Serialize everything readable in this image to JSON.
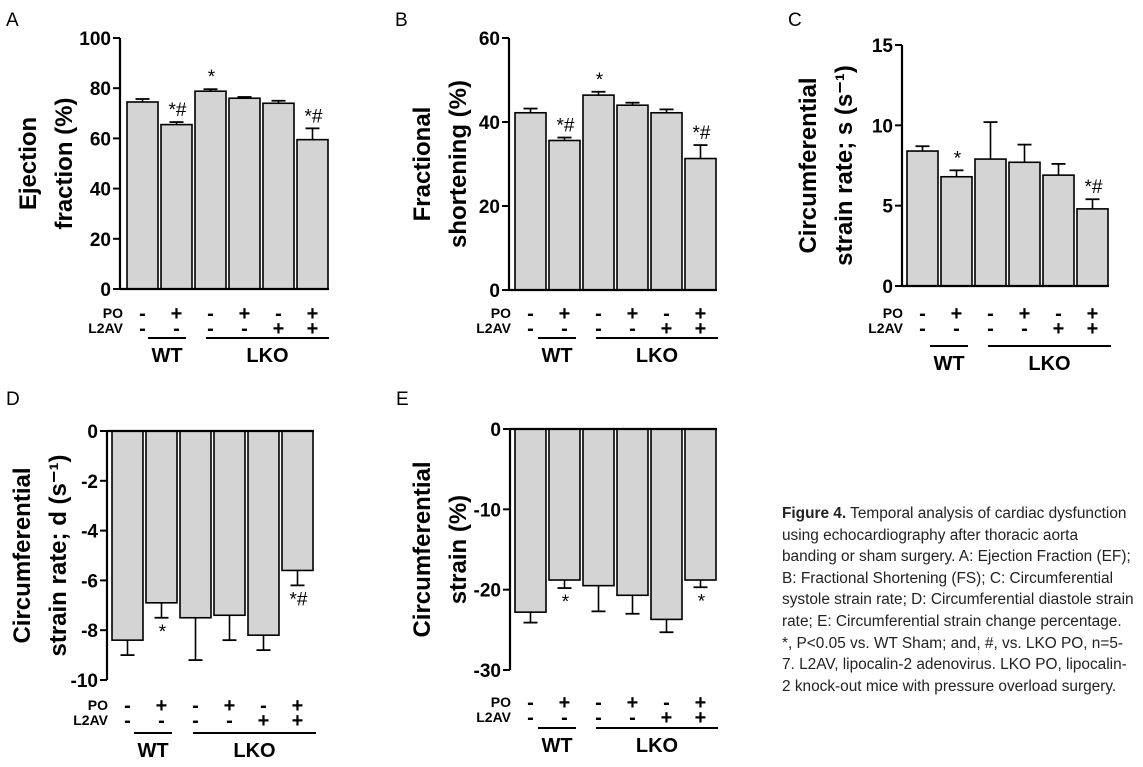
{
  "row_labels": [
    "PO",
    "L2AV"
  ],
  "conditions": [
    {
      "po": "-",
      "l2av": "-"
    },
    {
      "po": "+",
      "l2av": "-"
    },
    {
      "po": "-",
      "l2av": "-"
    },
    {
      "po": "+",
      "l2av": "-"
    },
    {
      "po": "-",
      "l2av": "+"
    },
    {
      "po": "+",
      "l2av": "+"
    }
  ],
  "groups": [
    {
      "label": "WT",
      "from": 0,
      "to": 1
    },
    {
      "label": "LKO",
      "from": 2,
      "to": 5
    }
  ],
  "bar_color": "#d4d4d4",
  "chart_data": [
    {
      "panel": "A",
      "type": "bar",
      "ylabel": [
        "Ejection",
        "fraction (%)"
      ],
      "ylim": [
        0,
        100
      ],
      "yticks": [
        0,
        20,
        40,
        60,
        80,
        100
      ],
      "values": [
        74.5,
        65.5,
        78.8,
        76,
        74,
        59.5
      ],
      "errors": [
        1.2,
        1.0,
        0.8,
        0.5,
        1.0,
        4.5
      ],
      "annotations": [
        "",
        "*#",
        "*",
        "",
        "",
        "*#"
      ]
    },
    {
      "panel": "B",
      "type": "bar",
      "ylabel": [
        "Fractional",
        "shortening (%)"
      ],
      "ylim": [
        0,
        60
      ],
      "yticks": [
        0,
        20,
        40,
        60
      ],
      "values": [
        42.2,
        35.6,
        46.4,
        44,
        42.2,
        31.3
      ],
      "errors": [
        1.0,
        0.7,
        0.8,
        0.6,
        0.8,
        3.2
      ],
      "annotations": [
        "",
        "*#",
        "*",
        "",
        "",
        "*#"
      ]
    },
    {
      "panel": "C",
      "type": "bar",
      "ylabel": [
        "Circumferential",
        "strain rate; s (s⁻¹)"
      ],
      "ylim": [
        0,
        15
      ],
      "yticks": [
        0,
        5,
        10,
        15
      ],
      "values": [
        8.4,
        6.8,
        7.9,
        7.7,
        6.9,
        4.8
      ],
      "errors": [
        0.3,
        0.4,
        2.3,
        1.1,
        0.7,
        0.6
      ],
      "annotations": [
        "",
        "*",
        "",
        "",
        "",
        "*#"
      ]
    },
    {
      "panel": "D",
      "type": "bar",
      "ylabel": [
        "Circumferential",
        "strain rate; d (s⁻¹)"
      ],
      "ylim": [
        -10,
        0
      ],
      "yticks": [
        0,
        -2,
        -4,
        -6,
        -8,
        -10
      ],
      "values": [
        -8.4,
        -6.9,
        -7.5,
        -7.4,
        -8.2,
        -5.6
      ],
      "errors": [
        0.6,
        0.6,
        1.7,
        1.0,
        0.6,
        0.6
      ],
      "annotations": [
        "",
        "*",
        "",
        "",
        "",
        "*#"
      ]
    },
    {
      "panel": "E",
      "type": "bar",
      "ylabel": [
        "Circumferential",
        "strain (%)"
      ],
      "ylim": [
        -30,
        0
      ],
      "yticks": [
        0,
        -10,
        -20,
        -30
      ],
      "values": [
        -22.8,
        -18.8,
        -19.5,
        -20.7,
        -23.7,
        -18.8
      ],
      "errors": [
        1.3,
        1.0,
        3.2,
        2.3,
        1.6,
        0.9
      ],
      "annotations": [
        "",
        "*",
        "",
        "",
        "",
        "*"
      ]
    }
  ],
  "caption": {
    "label": "Figure 4.",
    "text": "Temporal analysis of cardiac dysfunction using echocardiography after thoracic aorta banding or sham surgery. A: Ejection Fraction (EF); B: Fractional Shortening (FS); C: Circumferential systole strain rate; D: Circumferential diastole strain rate; E: Circumferential strain change percentage. *, P<0.05 vs. WT Sham; and, #, vs. LKO PO, n=5-7. L2AV, lipocalin-2 adenovirus. LKO PO, lipocalin-2 knock-out mice with pressure overload surgery."
  }
}
